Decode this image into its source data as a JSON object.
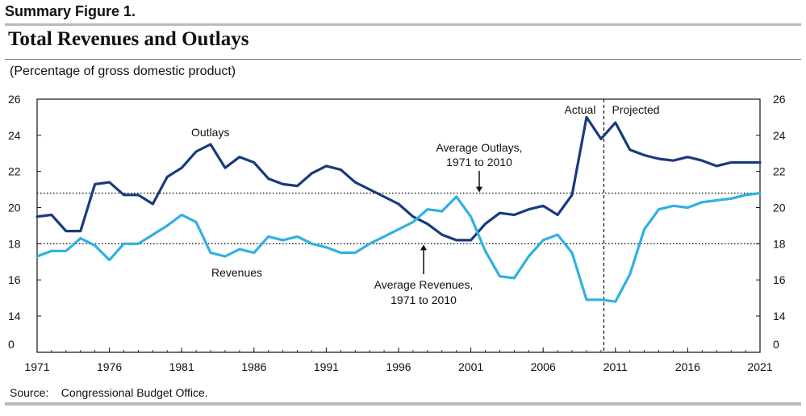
{
  "figure_label": "Summary Figure 1.",
  "title": "Total Revenues and Outlays",
  "subtitle": "(Percentage of gross domestic product)",
  "source": "Source:    Congressional Budget Office.",
  "colors": {
    "outlays": "#1a3a7c",
    "revenues": "#2fb1e2",
    "reference": "#111111"
  },
  "chart_data": {
    "type": "line",
    "title": "Total Revenues and Outlays",
    "ylabel": "(Percentage of gross domestic product)",
    "xlim": [
      1971,
      2021
    ],
    "ylim": [
      14,
      26
    ],
    "y_axis_break": "0 shown below 14",
    "x_ticks": [
      "1971",
      "1976",
      "1981",
      "1986",
      "1991",
      "1996",
      "2001",
      "2006",
      "2011",
      "2016",
      "2021"
    ],
    "y_ticks": [
      "26",
      "24",
      "22",
      "20",
      "18",
      "16",
      "14",
      "0"
    ],
    "grid": false,
    "series": [
      {
        "name": "Outlays",
        "x": [
          1971,
          1972,
          1973,
          1974,
          1975,
          1976,
          1977,
          1978,
          1979,
          1980,
          1981,
          1982,
          1983,
          1984,
          1985,
          1986,
          1987,
          1988,
          1989,
          1990,
          1991,
          1992,
          1993,
          1994,
          1995,
          1996,
          1997,
          1998,
          1999,
          2000,
          2001,
          2002,
          2003,
          2004,
          2005,
          2006,
          2007,
          2008,
          2009,
          2010,
          2011,
          2012,
          2013,
          2014,
          2015,
          2016,
          2017,
          2018,
          2019,
          2020,
          2021
        ],
        "values": [
          19.5,
          19.6,
          18.7,
          18.7,
          21.3,
          21.4,
          20.7,
          20.7,
          20.2,
          21.7,
          22.2,
          23.1,
          23.5,
          22.2,
          22.8,
          22.5,
          21.6,
          21.3,
          21.2,
          21.9,
          22.3,
          22.1,
          21.4,
          21.0,
          20.6,
          20.2,
          19.5,
          19.1,
          18.5,
          18.2,
          18.2,
          19.1,
          19.7,
          19.6,
          19.9,
          20.1,
          19.6,
          20.7,
          25.0,
          23.8,
          24.7,
          23.2,
          22.9,
          22.7,
          22.6,
          22.8,
          22.6,
          22.3,
          22.5,
          22.5,
          22.5
        ]
      },
      {
        "name": "Revenues",
        "x": [
          1971,
          1972,
          1973,
          1974,
          1975,
          1976,
          1977,
          1978,
          1979,
          1980,
          1981,
          1982,
          1983,
          1984,
          1985,
          1986,
          1987,
          1988,
          1989,
          1990,
          1991,
          1992,
          1993,
          1994,
          1995,
          1996,
          1997,
          1998,
          1999,
          2000,
          2001,
          2002,
          2003,
          2004,
          2005,
          2006,
          2007,
          2008,
          2009,
          2010,
          2011,
          2012,
          2013,
          2014,
          2015,
          2016,
          2017,
          2018,
          2019,
          2020,
          2021
        ],
        "values": [
          17.3,
          17.6,
          17.6,
          18.3,
          17.9,
          17.1,
          18.0,
          18.0,
          18.5,
          19.0,
          19.6,
          19.2,
          17.5,
          17.3,
          17.7,
          17.5,
          18.4,
          18.2,
          18.4,
          18.0,
          17.8,
          17.5,
          17.5,
          18.0,
          18.4,
          18.8,
          19.2,
          19.9,
          19.8,
          20.6,
          19.5,
          17.6,
          16.2,
          16.1,
          17.3,
          18.2,
          18.5,
          17.5,
          14.9,
          14.9,
          14.8,
          16.3,
          18.8,
          19.9,
          20.1,
          20.0,
          20.3,
          20.4,
          20.5,
          20.7,
          20.8
        ]
      }
    ],
    "reference_lines": [
      {
        "label": "Average Outlays,\n1971 to 2010",
        "value": 20.8
      },
      {
        "label": "Average Revenues,\n1971 to 2010",
        "value": 18.0
      }
    ],
    "divider": {
      "x": 2010.2,
      "left_label": "Actual",
      "right_label": "Projected"
    },
    "annotations": {
      "outlays_label": "Outlays",
      "revenues_label": "Revenues",
      "avg_outlays_line1": "Average Outlays,",
      "avg_outlays_line2": "1971 to 2010",
      "avg_revenues_line1": "Average Revenues,",
      "avg_revenues_line2": "1971 to 2010",
      "actual": "Actual",
      "projected": "Projected"
    }
  }
}
